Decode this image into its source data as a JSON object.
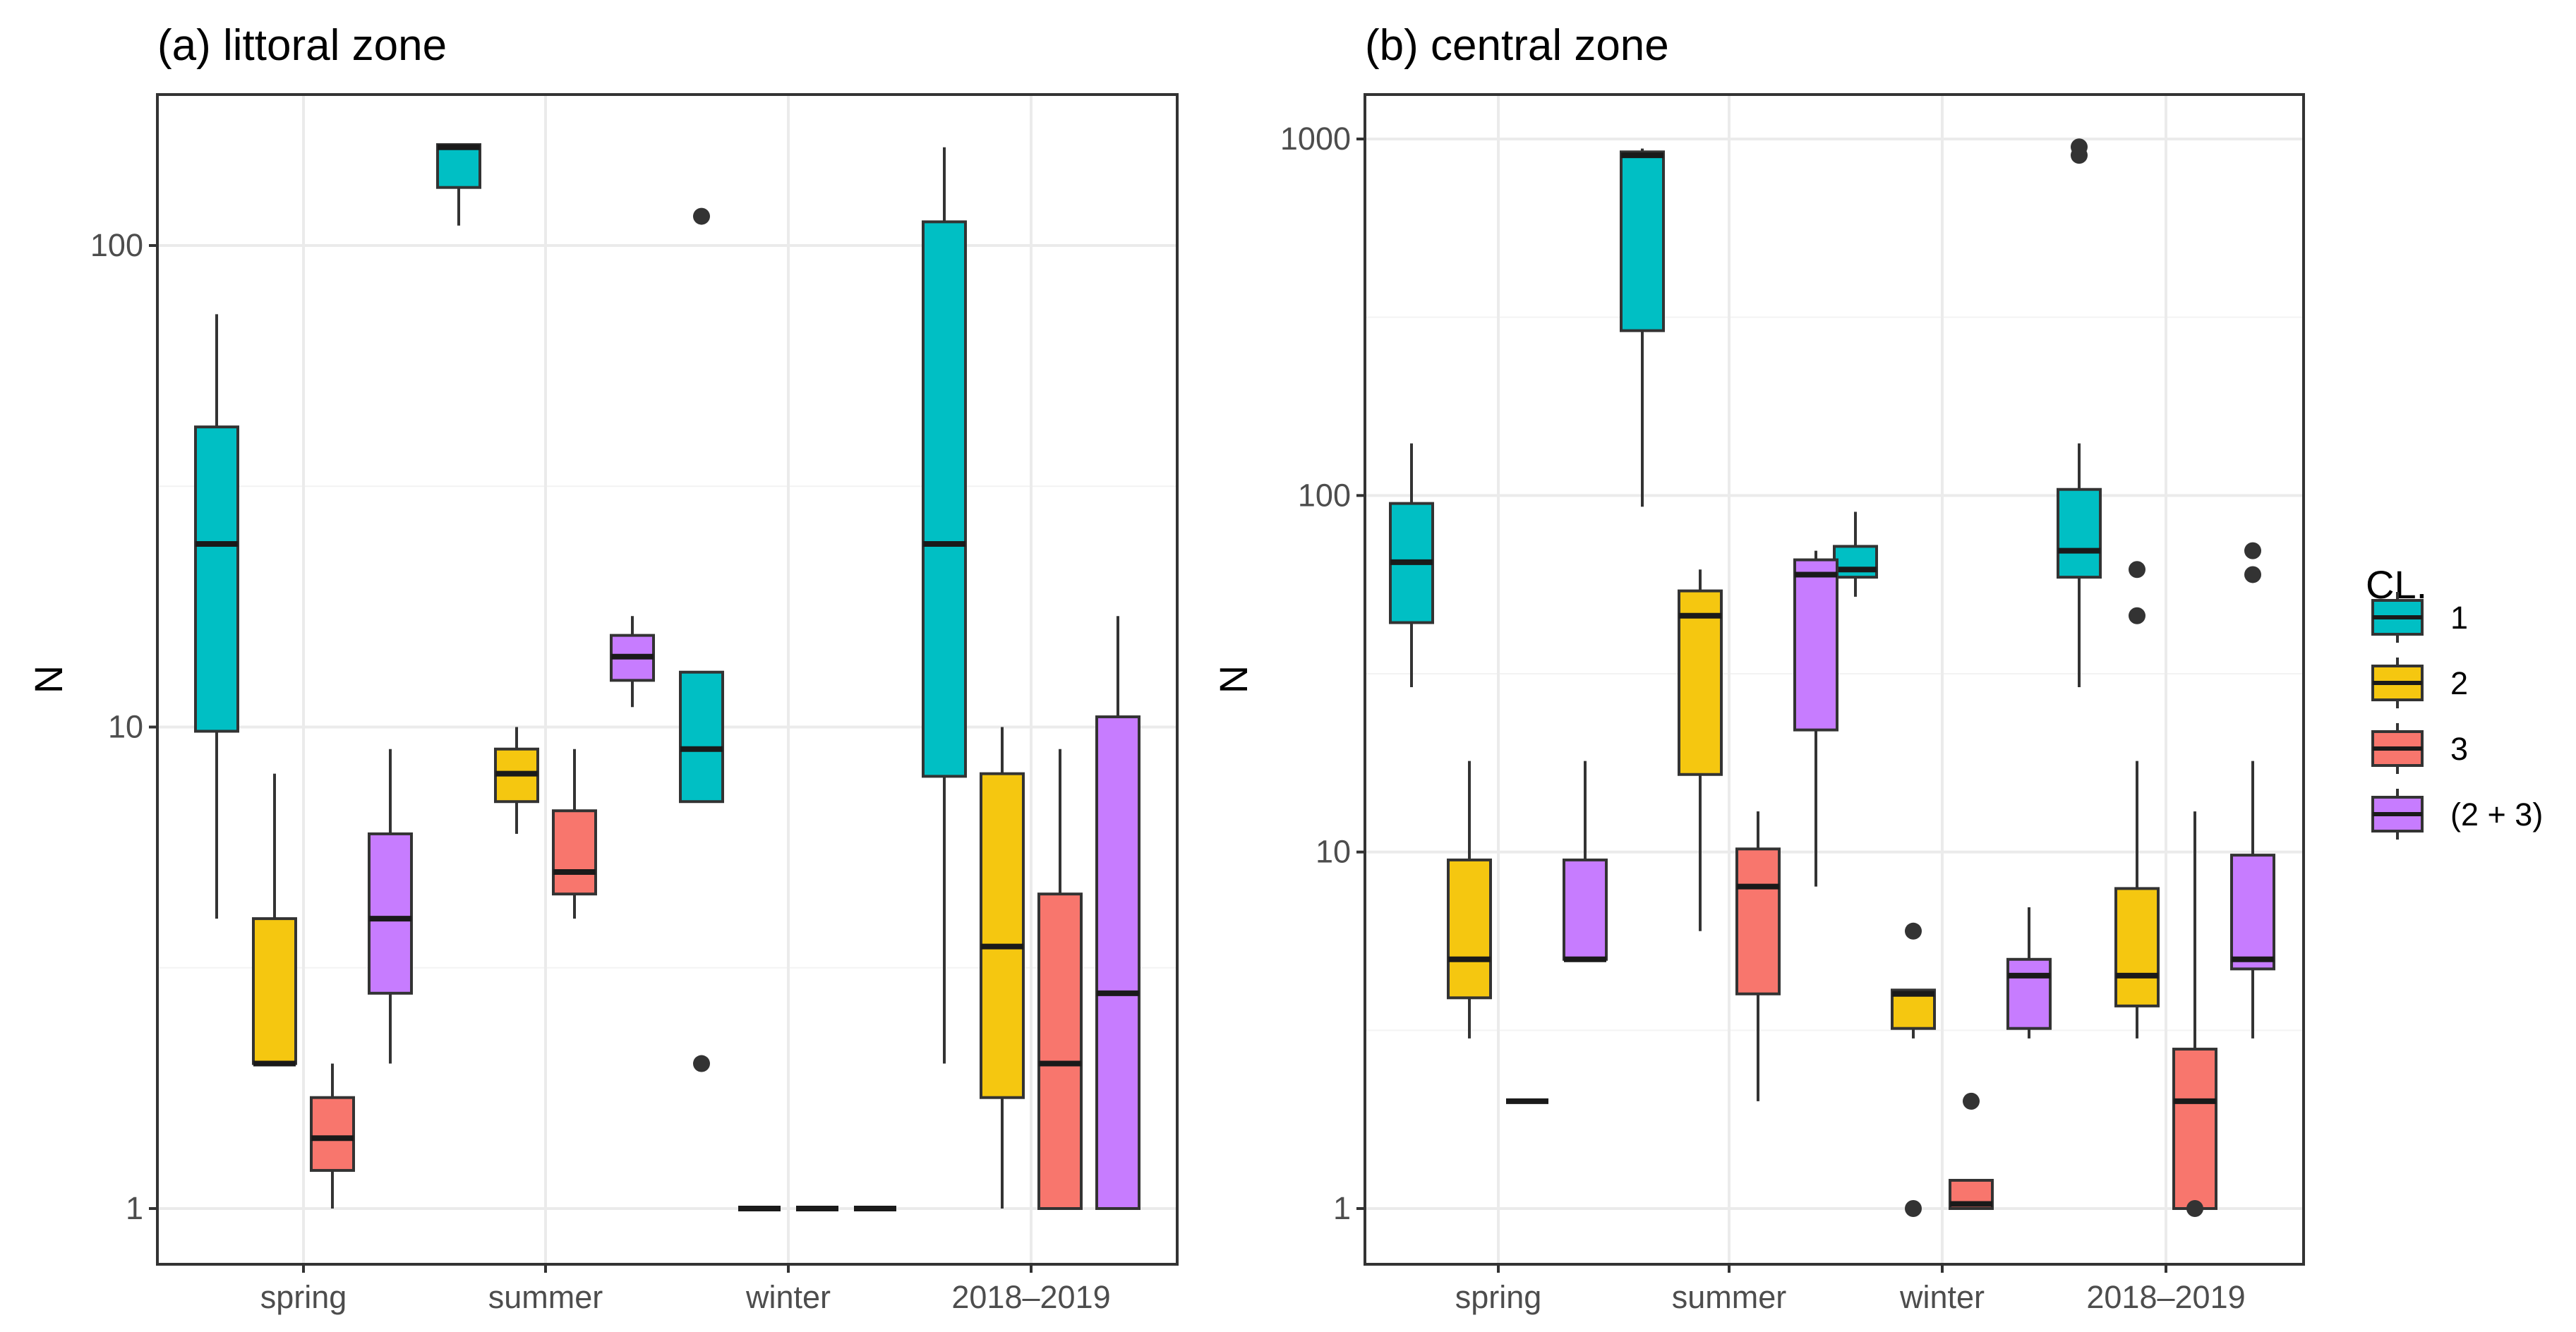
{
  "chart_data": [
    {
      "type": "boxplot",
      "title": "(a) littoral zone",
      "ylabel": "N",
      "xlabel": "",
      "yscale": "log10",
      "ylim": [
        0.8,
        200
      ],
      "y_ticks": [
        1,
        10,
        100
      ],
      "y_tick_labels": [
        "1",
        "10",
        "100"
      ],
      "categories": [
        "spring",
        "summer",
        "winter",
        "2018–2019"
      ],
      "series": [
        {
          "name": "1",
          "boxes": [
            {
              "category": "spring",
              "lower_whisker": 4,
              "q1": 9.8,
              "median": 24,
              "q3": 42,
              "upper_whisker": 72,
              "outliers": []
            },
            {
              "category": "summer",
              "lower_whisker": 110,
              "q1": 132,
              "median": 160,
              "q3": 162,
              "upper_whisker": 162,
              "outliers": []
            },
            {
              "category": "winter",
              "lower_whisker": 7,
              "q1": 7,
              "median": 9,
              "q3": 13,
              "upper_whisker": 13,
              "outliers": [
                2,
                115
              ]
            },
            {
              "category": "2018–2019",
              "lower_whisker": 2,
              "q1": 7.9,
              "median": 24,
              "q3": 112,
              "upper_whisker": 160,
              "outliers": []
            }
          ]
        },
        {
          "name": "2",
          "boxes": [
            {
              "category": "spring",
              "lower_whisker": 2,
              "q1": 2,
              "median": 2,
              "q3": 4,
              "upper_whisker": 8,
              "outliers": []
            },
            {
              "category": "summer",
              "lower_whisker": 6,
              "q1": 7,
              "median": 8,
              "q3": 9,
              "upper_whisker": 10,
              "outliers": []
            },
            {
              "category": "winter",
              "lower_whisker": 1,
              "q1": 1,
              "median": 1,
              "q3": 1,
              "upper_whisker": 1,
              "outliers": []
            },
            {
              "category": "2018–2019",
              "lower_whisker": 1,
              "q1": 1.7,
              "median": 3.5,
              "q3": 8,
              "upper_whisker": 10,
              "outliers": []
            }
          ]
        },
        {
          "name": "3",
          "boxes": [
            {
              "category": "spring",
              "lower_whisker": 1,
              "q1": 1.2,
              "median": 1.4,
              "q3": 1.7,
              "upper_whisker": 2,
              "outliers": []
            },
            {
              "category": "summer",
              "lower_whisker": 4,
              "q1": 4.5,
              "median": 5,
              "q3": 6.7,
              "upper_whisker": 9,
              "outliers": []
            },
            {
              "category": "winter",
              "lower_whisker": 1,
              "q1": 1,
              "median": 1,
              "q3": 1,
              "upper_whisker": 1,
              "outliers": []
            },
            {
              "category": "2018–2019",
              "lower_whisker": 1,
              "q1": 1,
              "median": 2,
              "q3": 4.5,
              "upper_whisker": 9,
              "outliers": []
            }
          ]
        },
        {
          "name": "(2 + 3)",
          "boxes": [
            {
              "category": "spring",
              "lower_whisker": 2,
              "q1": 2.8,
              "median": 4,
              "q3": 6,
              "upper_whisker": 9,
              "outliers": []
            },
            {
              "category": "summer",
              "lower_whisker": 11,
              "q1": 12.5,
              "median": 14,
              "q3": 15.5,
              "upper_whisker": 17,
              "outliers": []
            },
            {
              "category": "winter",
              "lower_whisker": 1,
              "q1": 1,
              "median": 1,
              "q3": 1,
              "upper_whisker": 1,
              "outliers": []
            },
            {
              "category": "2018–2019",
              "lower_whisker": 1,
              "q1": 1,
              "median": 2.8,
              "q3": 10.5,
              "upper_whisker": 17,
              "outliers": []
            }
          ]
        }
      ]
    },
    {
      "type": "boxplot",
      "title": "(b) central zone",
      "ylabel": "N",
      "xlabel": "",
      "yscale": "log10",
      "ylim": [
        0.8,
        1300
      ],
      "y_ticks": [
        1,
        10,
        100,
        1000
      ],
      "y_tick_labels": [
        "1",
        "10",
        "100",
        "1000"
      ],
      "categories": [
        "spring",
        "summer",
        "winter",
        "2018–2019"
      ],
      "series": [
        {
          "name": "1",
          "boxes": [
            {
              "category": "spring",
              "lower_whisker": 29,
              "q1": 44,
              "median": 65,
              "q3": 95,
              "upper_whisker": 140,
              "outliers": []
            },
            {
              "category": "summer",
              "lower_whisker": 93,
              "q1": 290,
              "median": 900,
              "q3": 920,
              "upper_whisker": 940,
              "outliers": []
            },
            {
              "category": "winter",
              "lower_whisker": 52,
              "q1": 59,
              "median": 62,
              "q3": 72,
              "upper_whisker": 90,
              "outliers": []
            },
            {
              "category": "2018–2019",
              "lower_whisker": 29,
              "q1": 59,
              "median": 70,
              "q3": 104,
              "upper_whisker": 140,
              "outliers": [
                900,
                950
              ]
            }
          ]
        },
        {
          "name": "2",
          "boxes": [
            {
              "category": "spring",
              "lower_whisker": 3,
              "q1": 3.9,
              "median": 5,
              "q3": 9.5,
              "upper_whisker": 18,
              "outliers": []
            },
            {
              "category": "summer",
              "lower_whisker": 6,
              "q1": 16.5,
              "median": 46,
              "q3": 54,
              "upper_whisker": 62,
              "outliers": []
            },
            {
              "category": "winter",
              "lower_whisker": 3,
              "q1": 3.2,
              "median": 4,
              "q3": 4.1,
              "upper_whisker": 4.1,
              "outliers": [
                1,
                6
              ]
            },
            {
              "category": "2018–2019",
              "lower_whisker": 3,
              "q1": 3.7,
              "median": 4.5,
              "q3": 7.9,
              "upper_whisker": 18,
              "outliers": [
                46,
                62
              ]
            }
          ]
        },
        {
          "name": "3",
          "boxes": [
            {
              "category": "spring",
              "lower_whisker": 2,
              "q1": 2,
              "median": 2,
              "q3": 2,
              "upper_whisker": 2,
              "outliers": []
            },
            {
              "category": "summer",
              "lower_whisker": 2,
              "q1": 4,
              "median": 8,
              "q3": 10.2,
              "upper_whisker": 13,
              "outliers": []
            },
            {
              "category": "winter",
              "lower_whisker": 1,
              "q1": 1,
              "median": 1.03,
              "q3": 1.2,
              "upper_whisker": 1.2,
              "outliers": [
                2
              ]
            },
            {
              "category": "2018–2019",
              "lower_whisker": 1,
              "q1": 1,
              "median": 2,
              "q3": 2.8,
              "upper_whisker": 13,
              "outliers": [
                1
              ]
            }
          ]
        },
        {
          "name": "(2 + 3)",
          "boxes": [
            {
              "category": "spring",
              "lower_whisker": 5,
              "q1": 5,
              "median": 5,
              "q3": 9.5,
              "upper_whisker": 18,
              "outliers": []
            },
            {
              "category": "summer",
              "lower_whisker": 8,
              "q1": 22,
              "median": 60,
              "q3": 66,
              "upper_whisker": 70,
              "outliers": []
            },
            {
              "category": "winter",
              "lower_whisker": 3,
              "q1": 3.2,
              "median": 4.5,
              "q3": 5,
              "upper_whisker": 7,
              "outliers": []
            },
            {
              "category": "2018–2019",
              "lower_whisker": 3,
              "q1": 4.7,
              "median": 5,
              "q3": 9.8,
              "upper_whisker": 18,
              "outliers": [
                60,
                70
              ]
            }
          ]
        }
      ]
    }
  ],
  "legend": {
    "title": "CL.",
    "entries": [
      "1",
      "2",
      "3",
      "(2 + 3)"
    ],
    "colors": [
      "#00BFC4",
      "#F5C710",
      "#F8766D",
      "#C77CFF"
    ],
    "placement": "right"
  },
  "style": {
    "box_stroke": "#333333",
    "grid_color": "#ebebeb",
    "panel_border": "#333333"
  }
}
